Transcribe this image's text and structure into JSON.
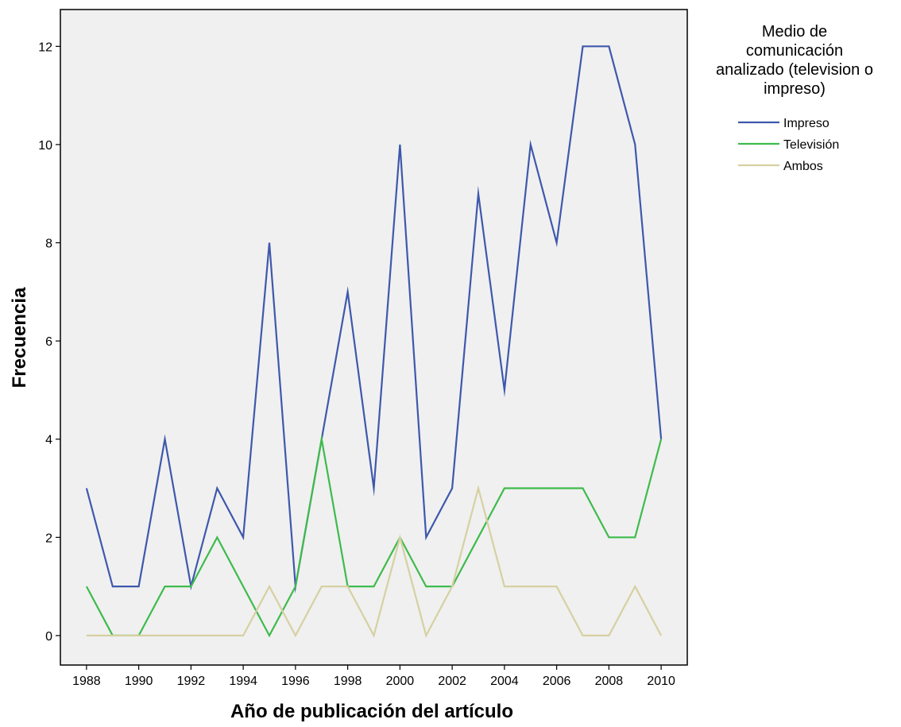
{
  "chart_data": {
    "type": "line",
    "title": "",
    "xlabel": "Año de publicación del artículo",
    "ylabel": "Frecuencia",
    "x": [
      1988,
      1989,
      1990,
      1991,
      1992,
      1993,
      1994,
      1995,
      1996,
      1997,
      1998,
      1999,
      2000,
      2001,
      2002,
      2003,
      2004,
      2005,
      2006,
      2007,
      2008,
      2009,
      2010
    ],
    "xticks": [
      "1988",
      "1990",
      "1992",
      "1994",
      "1996",
      "1998",
      "2000",
      "2002",
      "2004",
      "2006",
      "2008",
      "2010"
    ],
    "yticks": [
      "0",
      "2",
      "4",
      "6",
      "8",
      "10",
      "12"
    ],
    "xlim": [
      1987,
      2011
    ],
    "ylim": [
      -0.6,
      12.75
    ],
    "grid": false,
    "plot_background": "#f0f0f0",
    "legend": {
      "position": "right",
      "title": "Medio de comunicación analizado (television o impreso)",
      "title_lines": [
        "Medio de",
        "comunicación",
        "analizado (television o",
        "impreso)"
      ]
    },
    "series": [
      {
        "name": "Impreso",
        "color": "#3e58ac",
        "values": [
          3,
          1,
          1,
          4,
          1,
          3,
          2,
          8,
          1,
          4,
          7,
          3,
          10,
          2,
          3,
          9,
          5,
          10,
          8,
          12,
          12,
          10,
          4
        ]
      },
      {
        "name": "Televisión",
        "color": "#3ebb4c",
        "values": [
          1,
          0,
          0,
          1,
          1,
          2,
          1,
          0,
          1,
          4,
          1,
          1,
          2,
          1,
          1,
          2,
          3,
          3,
          3,
          3,
          2,
          2,
          4
        ]
      },
      {
        "name": "Ambos",
        "color": "#d6d0a1",
        "values": [
          0,
          0,
          0,
          0,
          0,
          0,
          0,
          1,
          0,
          1,
          1,
          0,
          2,
          0,
          1,
          3,
          1,
          1,
          1,
          0,
          0,
          1,
          0
        ]
      }
    ]
  }
}
